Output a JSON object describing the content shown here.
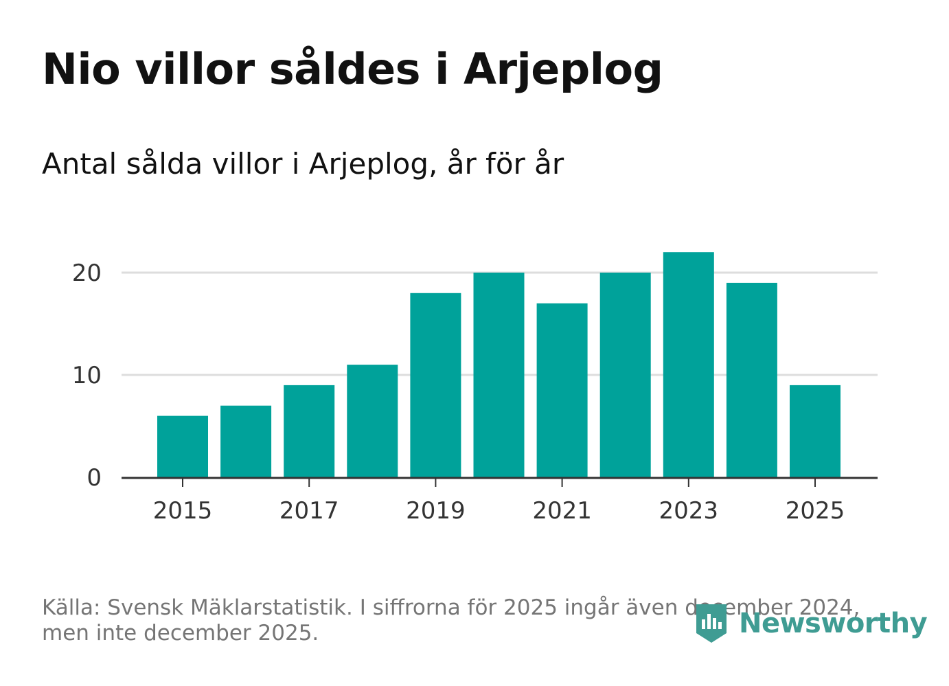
{
  "title": "Nio villor såldes i Arjeplog",
  "subtitle": "Antal sålda villor i Arjeplog, år för år",
  "source": "Källa: Svensk Mäklarstatistik. I siffrorna för 2025 ingår även december 2024, men inte december 2025.",
  "brand": {
    "name": "Newsworthy",
    "color": "#3f9c93",
    "icon": "newsworthy-logo-icon"
  },
  "colors": {
    "bar": "#00a29a",
    "grid": "#dddddd",
    "axis": "#333333"
  },
  "chart_data": {
    "type": "bar",
    "x": [
      2015,
      2016,
      2017,
      2018,
      2019,
      2020,
      2021,
      2022,
      2023,
      2024,
      2025
    ],
    "values": [
      6,
      7,
      9,
      11,
      18,
      20,
      17,
      20,
      22,
      19,
      9
    ],
    "x_ticks": [
      2015,
      2017,
      2019,
      2021,
      2023,
      2025
    ],
    "y_ticks": [
      0,
      10,
      20
    ],
    "ylim": [
      0,
      24
    ],
    "grid": true,
    "legend": "none"
  }
}
